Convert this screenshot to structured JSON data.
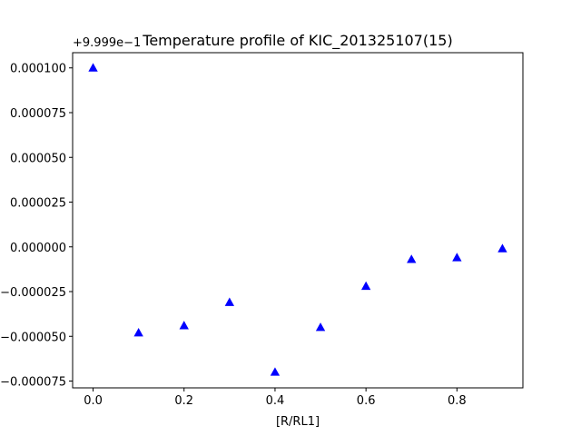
{
  "chart_data": {
    "type": "scatter",
    "title": "Temperature profile of KIC_201325107(15)",
    "xlabel": "[R/RL1]",
    "ylabel": "",
    "y_offset_label": "+9.999e−1",
    "marker": "triangle-up",
    "color": "#0000ff",
    "grid": false,
    "xlim": [
      -0.045,
      0.945
    ],
    "ylim": [
      -7.88e-05,
      0.0001085
    ],
    "x_ticks": [
      0.0,
      0.2,
      0.4,
      0.6,
      0.8
    ],
    "x_tick_labels": [
      "0.0",
      "0.2",
      "0.4",
      "0.6",
      "0.8"
    ],
    "y_ticks": [
      -7.5e-05,
      -5e-05,
      -2.5e-05,
      0.0,
      2.5e-05,
      5e-05,
      7.5e-05,
      0.0001
    ],
    "y_tick_labels": [
      "−0.000075",
      "−0.000050",
      "−0.000025",
      "0.000000",
      "0.000025",
      "0.000050",
      "0.000075",
      "0.000100"
    ],
    "x": [
      0.0,
      0.1,
      0.2,
      0.3,
      0.4,
      0.5,
      0.6,
      0.7,
      0.8,
      0.9
    ],
    "y": [
      0.0001,
      -4.8e-05,
      -4.4e-05,
      -3.1e-05,
      -7e-05,
      -4.5e-05,
      -2.2e-05,
      -7e-06,
      -6e-06,
      -1e-06
    ]
  }
}
